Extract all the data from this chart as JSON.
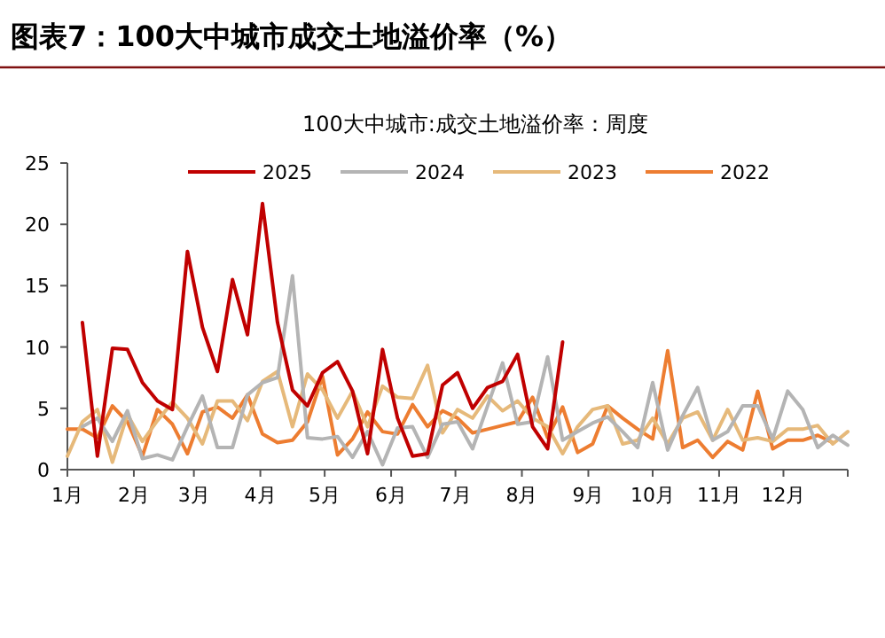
{
  "chart_data": {
    "type": "line",
    "title": "图表7：100大中城市成交土地溢价率（%）",
    "subtitle": "100大中城市:成交土地溢价率：周度",
    "xlim": [
      "--01-01",
      "--12-31"
    ],
    "xticks": [
      {
        "value": "--01-01",
        "label": "1月"
      },
      {
        "value": "--02-01",
        "label": "2月"
      },
      {
        "value": "--03-01",
        "label": "3月"
      },
      {
        "value": "--04-01",
        "label": "4月"
      },
      {
        "value": "--05-01",
        "label": "5月"
      },
      {
        "value": "--06-01",
        "label": "6月"
      },
      {
        "value": "--07-01",
        "label": "7月"
      },
      {
        "value": "--08-01",
        "label": "8月"
      },
      {
        "value": "--09-01",
        "label": "9月"
      },
      {
        "value": "--10-01",
        "label": "10月"
      },
      {
        "value": "--11-01",
        "label": "11月"
      },
      {
        "value": "--12-01",
        "label": "12月"
      },
      {
        "value": "--12-31",
        "label": null
      }
    ],
    "ylim": [
      0,
      25
    ],
    "yticks": [
      0,
      5,
      10,
      15,
      20,
      25
    ],
    "grid": false,
    "legend": "top",
    "marker": "none",
    "line_style": "solid",
    "series": [
      {
        "name": "2025",
        "color": "#c00000",
        "x": [
          "--01-08",
          "--01-15",
          "--01-22",
          "--01-29",
          "--02-05",
          "--02-12",
          "--02-19",
          "--02-26",
          "--03-05",
          "--03-12",
          "--03-19",
          "--03-26",
          "--04-02",
          "--04-09",
          "--04-16",
          "--04-23",
          "--04-30",
          "--05-07",
          "--05-14",
          "--05-21",
          "--05-28",
          "--06-04",
          "--06-11",
          "--06-18",
          "--06-25",
          "--07-02",
          "--07-09",
          "--07-16",
          "--07-23",
          "--07-30",
          "--08-06",
          "--08-13",
          "--08-20"
        ],
        "values": [
          12.0,
          1.1,
          9.9,
          9.8,
          7.1,
          5.6,
          4.9,
          17.8,
          11.6,
          8.0,
          15.5,
          11.0,
          21.7,
          12.0,
          6.5,
          5.2,
          7.9,
          8.8,
          6.4,
          1.3,
          9.8,
          4.2,
          1.1,
          1.3,
          6.9,
          7.9,
          5.0,
          6.7,
          7.2,
          9.4,
          3.5,
          1.7,
          10.4
        ]
      },
      {
        "name": "2024",
        "color": "#b4b4b4",
        "x": [
          "--01-08",
          "--01-15",
          "--01-22",
          "--01-29",
          "--02-05",
          "--02-12",
          "--02-19",
          "--02-26",
          "--03-05",
          "--03-12",
          "--03-19",
          "--03-26",
          "--04-02",
          "--04-09",
          "--04-16",
          "--04-23",
          "--04-30",
          "--05-07",
          "--05-14",
          "--05-21",
          "--05-28",
          "--06-04",
          "--06-11",
          "--06-18",
          "--06-25",
          "--07-02",
          "--07-09",
          "--07-16",
          "--07-23",
          "--07-30",
          "--08-06",
          "--08-13",
          "--08-20",
          "--08-27",
          "--09-03",
          "--09-10",
          "--09-17",
          "--09-24",
          "--10-01",
          "--10-08",
          "--10-15",
          "--10-22",
          "--10-29",
          "--11-05",
          "--11-12",
          "--11-19",
          "--11-26",
          "--12-03",
          "--12-10",
          "--12-17",
          "--12-24",
          "--12-31"
        ],
        "values": [
          3.5,
          4.2,
          2.3,
          4.8,
          0.9,
          1.2,
          0.8,
          3.5,
          6.0,
          1.8,
          1.8,
          6.1,
          7.1,
          7.5,
          15.8,
          2.6,
          2.5,
          2.7,
          1.0,
          3.1,
          0.4,
          3.4,
          3.5,
          1.0,
          3.7,
          3.9,
          1.7,
          5.2,
          8.7,
          3.7,
          3.9,
          9.2,
          2.4,
          3.1,
          3.8,
          4.3,
          3.1,
          1.8,
          7.1,
          1.6,
          4.4,
          6.7,
          2.4,
          3.1,
          5.2,
          5.2,
          2.5,
          6.4,
          4.9,
          1.8,
          2.8,
          2.0
        ]
      },
      {
        "name": "2023",
        "color": "#e6b97a",
        "x": [
          "--01-01",
          "--01-08",
          "--01-15",
          "--01-22",
          "--01-29",
          "--02-05",
          "--02-12",
          "--02-19",
          "--02-26",
          "--03-05",
          "--03-12",
          "--03-19",
          "--03-26",
          "--04-02",
          "--04-09",
          "--04-16",
          "--04-23",
          "--04-30",
          "--05-07",
          "--05-14",
          "--05-21",
          "--05-28",
          "--06-04",
          "--06-11",
          "--06-18",
          "--06-25",
          "--07-02",
          "--07-09",
          "--07-16",
          "--07-23",
          "--07-30",
          "--08-06",
          "--08-13",
          "--08-20",
          "--08-27",
          "--09-03",
          "--09-10",
          "--09-17",
          "--09-24",
          "--10-01",
          "--10-08",
          "--10-15",
          "--10-22",
          "--10-29",
          "--11-05",
          "--11-12",
          "--11-19",
          "--11-26",
          "--12-03",
          "--12-10",
          "--12-17",
          "--12-24",
          "--12-31"
        ],
        "values": [
          1.1,
          3.9,
          4.9,
          0.6,
          4.5,
          2.3,
          4.0,
          5.5,
          4.2,
          2.1,
          5.6,
          5.6,
          4.0,
          7.2,
          8.0,
          3.5,
          7.8,
          6.5,
          4.2,
          6.4,
          3.5,
          6.8,
          5.9,
          5.8,
          8.5,
          3.0,
          4.9,
          4.2,
          6.0,
          4.8,
          5.6,
          4.2,
          3.5,
          1.3,
          3.5,
          4.9,
          5.2,
          2.1,
          2.4,
          4.2,
          2.1,
          4.2,
          4.7,
          2.4,
          4.9,
          2.4,
          2.6,
          2.3,
          3.3,
          3.3,
          3.6,
          2.1,
          3.1
        ]
      },
      {
        "name": "2022",
        "color": "#ed7d31",
        "x": [
          "--01-01",
          "--01-08",
          "--01-15",
          "--01-22",
          "--01-29",
          "--02-05",
          "--02-12",
          "--02-19",
          "--02-26",
          "--03-05",
          "--03-12",
          "--03-19",
          "--03-26",
          "--04-02",
          "--04-09",
          "--04-16",
          "--04-23",
          "--04-30",
          "--05-07",
          "--05-14",
          "--05-21",
          "--05-28",
          "--06-04",
          "--06-11",
          "--06-18",
          "--06-25",
          "--07-02",
          "--07-09",
          "--07-16",
          "--07-23",
          "--07-30",
          "--08-06",
          "--08-13",
          "--08-20",
          "--08-27",
          "--09-03",
          "--09-10",
          "--09-17",
          "--09-24",
          "--10-01",
          "--10-08",
          "--10-15",
          "--10-22",
          "--10-29",
          "--11-05",
          "--11-12",
          "--11-19",
          "--11-26",
          "--12-03",
          "--12-10",
          "--12-17",
          "--12-24"
        ],
        "values": [
          3.3,
          3.3,
          2.6,
          5.2,
          3.9,
          1.1,
          4.9,
          3.7,
          1.3,
          4.7,
          5.1,
          4.2,
          6.1,
          2.9,
          2.2,
          2.4,
          3.9,
          7.6,
          1.2,
          2.5,
          4.7,
          3.1,
          2.9,
          5.3,
          3.5,
          4.8,
          4.2,
          3.0,
          3.3,
          3.6,
          3.9,
          5.9,
          2.6,
          5.1,
          1.4,
          2.1,
          5.2,
          4.2,
          3.3,
          2.5,
          9.7,
          1.8,
          2.4,
          1.0,
          2.3,
          1.6,
          6.4,
          1.7,
          2.4,
          2.4,
          2.8,
          2.2
        ]
      }
    ]
  }
}
